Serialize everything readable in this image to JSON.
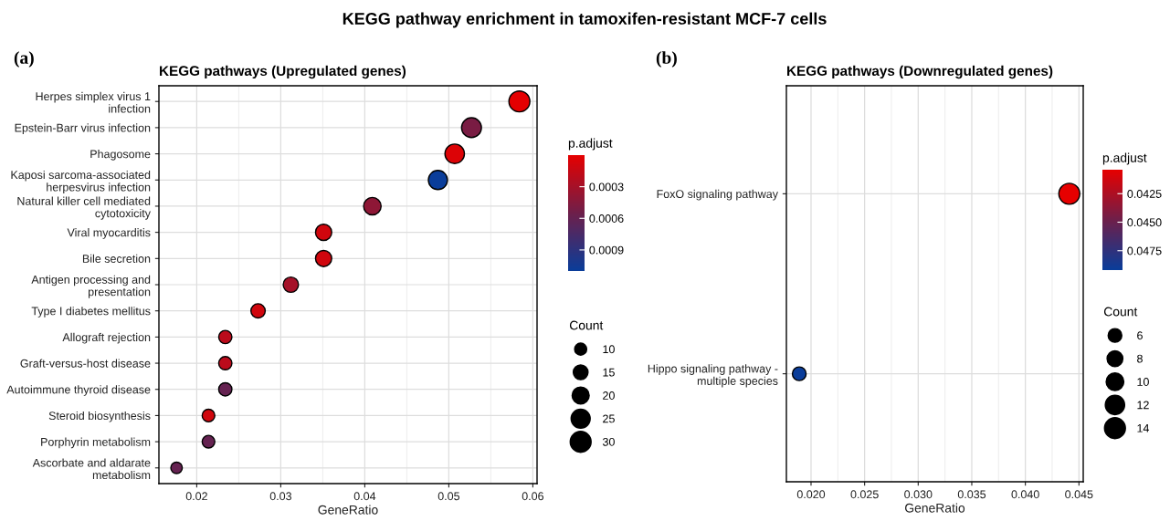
{
  "chart_data": [
    {
      "type": "bubble",
      "orientation": "horizontal",
      "title": "KEGG pathways (Upregulated genes)",
      "xlabel": "GeneRatio",
      "clabel": "p.adjust",
      "legend_title": "Count",
      "grid": true,
      "annotations": [
        "KEGG pathway enrichment in tamoxifen-resistant MCF-7 cells",
        "(a)"
      ],
      "categories": [
        "Herpes simplex virus 1\ninfection",
        "Epstein-Barr virus infection",
        "Phagosome",
        "Kaposi sarcoma-associated\nherpesvirus infection",
        "Natural killer cell mediated\ncytotoxicity",
        "Viral myocarditis",
        "Bile secretion",
        "Antigen processing and\npresentation",
        "Type I diabetes mellitus",
        "Allograft rejection",
        "Graft-versus-host disease",
        "Autoimmune thyroid disease",
        "Steroid biosynthesis",
        "Porphyrin metabolism",
        "Ascorbate and aldarate\nmetabolism"
      ],
      "values": [
        0.0584,
        0.0527,
        0.0507,
        0.0487,
        0.0409,
        0.0351,
        0.0351,
        0.0312,
        0.0273,
        0.0234,
        0.0234,
        0.0234,
        0.0214,
        0.0214,
        0.0176
      ],
      "sizes": [
        30,
        27,
        26,
        25,
        21,
        18,
        18,
        16,
        14,
        12,
        12,
        12,
        11,
        11,
        9
      ],
      "cvalues": [
        1e-05,
        0.0005,
        5e-05,
        0.0011,
        0.0004,
        0.0001,
        0.0001,
        0.0003,
        0.0001,
        0.0002,
        0.0002,
        0.0006,
        0.0001,
        0.0006,
        0.0006
      ],
      "size_legend": [
        10,
        15,
        20,
        25,
        30
      ],
      "xlim": [
        0.0155,
        0.0605
      ],
      "xticks": [
        0.02,
        0.03,
        0.04,
        0.05,
        0.06
      ],
      "clim": [
        0.0,
        0.0011
      ],
      "cticks": [
        0.0003,
        0.0006,
        0.0009
      ]
    },
    {
      "type": "bubble",
      "orientation": "horizontal",
      "title": "KEGG pathways (Downregulated genes)",
      "xlabel": "GeneRatio",
      "clabel": "p.adjust",
      "legend_title": "Count",
      "grid": true,
      "annotations": [
        "(b)"
      ],
      "categories": [
        "FoxO signaling pathway",
        "Hippo signaling pathway -\nmultiple species"
      ],
      "values": [
        0.0441,
        0.0189
      ],
      "sizes": [
        14,
        6
      ],
      "cvalues": [
        0.0404,
        0.0492
      ],
      "size_legend": [
        6,
        8,
        10,
        12,
        14
      ],
      "xlim": [
        0.0177,
        0.0454
      ],
      "xticks": [
        {
          "value": 0.02,
          "label": "0.020"
        },
        {
          "value": 0.025,
          "label": "0.025"
        },
        {
          "value": 0.03,
          "label": "0.030"
        },
        {
          "value": 0.035,
          "label": "0.035"
        },
        {
          "value": 0.04,
          "label": "0.040"
        },
        {
          "value": 0.045,
          "label": "0.045"
        }
      ],
      "clim": [
        0.0404,
        0.0492
      ],
      "cticks": [
        {
          "value": 0.0425,
          "label": "0.0425"
        },
        {
          "value": 0.045,
          "label": "0.0450"
        },
        {
          "value": 0.0475,
          "label": "0.0475"
        }
      ]
    }
  ]
}
